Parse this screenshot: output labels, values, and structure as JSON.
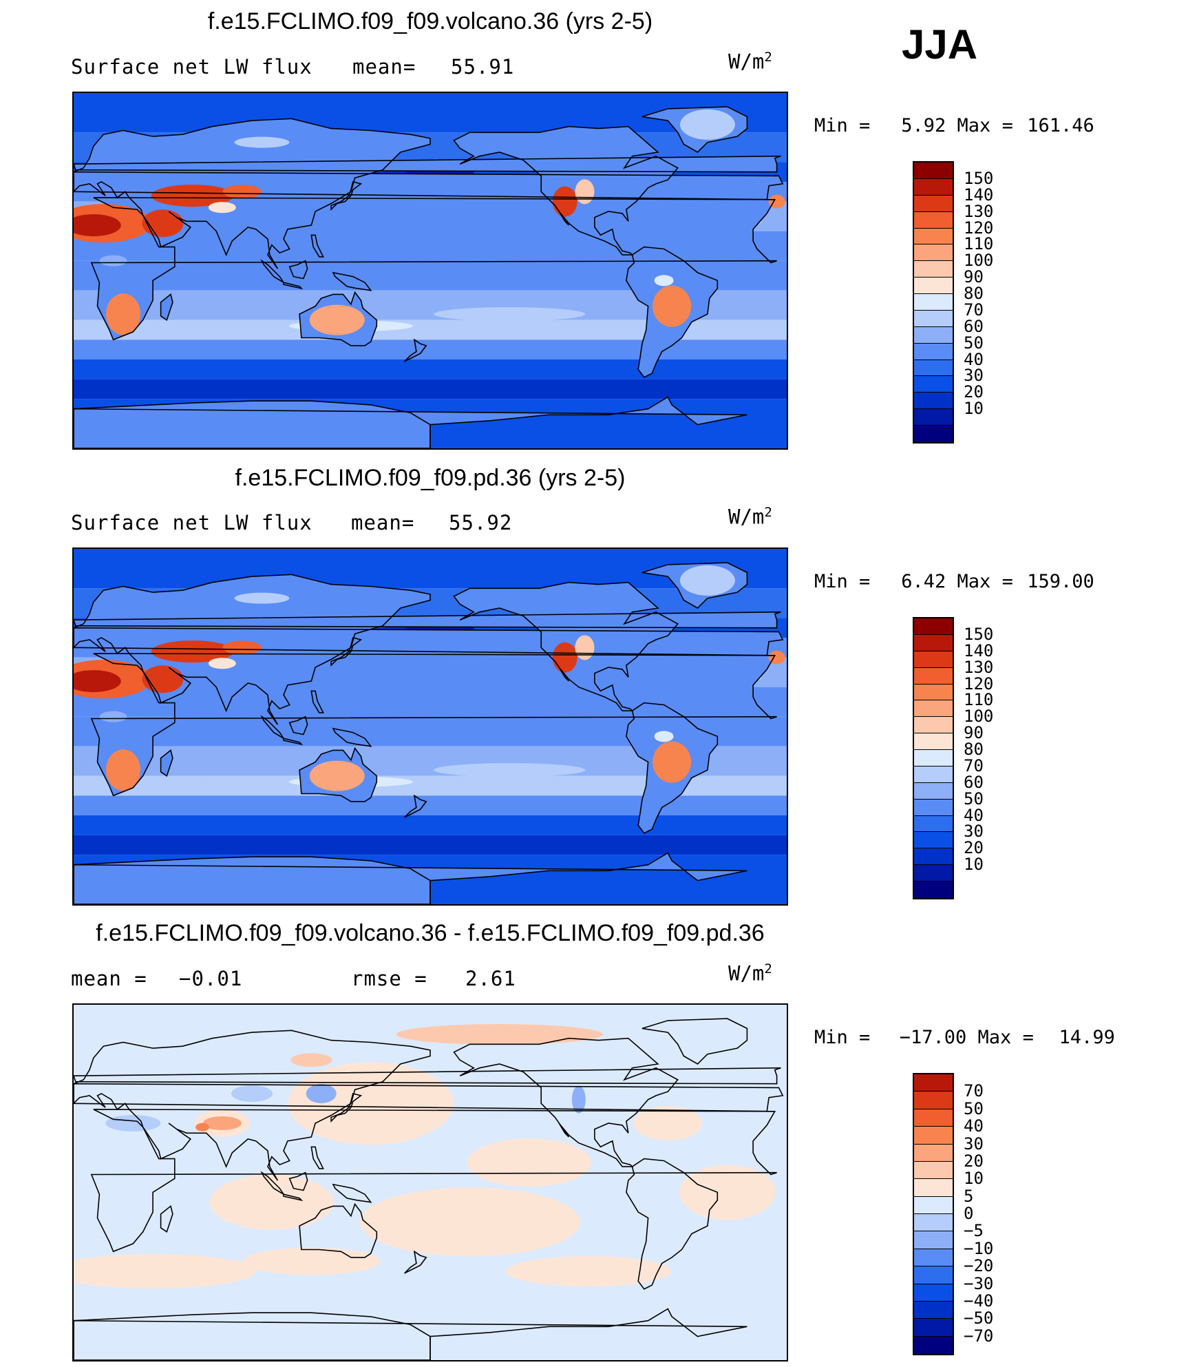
{
  "season": "JJA",
  "colors": {
    "full": [
      "#00007f",
      "#0019a6",
      "#0032c8",
      "#0a50e6",
      "#2d6eef",
      "#5a8cf5",
      "#8caff8",
      "#b4cdfa",
      "#dceafd",
      "#fde5d6",
      "#fcc9ae",
      "#fba57c",
      "#f7844f",
      "#f05f2d",
      "#dc3a16",
      "#b8180a",
      "#8c0000"
    ],
    "diff": [
      "#00007f",
      "#0019a6",
      "#0032c8",
      "#0a50e6",
      "#2d6eef",
      "#5a8cf5",
      "#8caff8",
      "#b4cdfa",
      "#dceafd",
      "#fde5d6",
      "#fcc9ae",
      "#fba57c",
      "#f7844f",
      "#f05f2d",
      "#dc3a16",
      "#b8180a"
    ]
  },
  "chart_data": [
    {
      "type": "heatmap",
      "title": "f.e15.FCLIMO.f09_f09.volcano.36 (yrs 2-5)",
      "variable": "Surface net LW flux",
      "mean_label": "mean=",
      "mean": "55.91",
      "units": "W/m",
      "units_sup": "2",
      "min_label": "Min =",
      "min": "5.92",
      "max_label": "Max =",
      "max": "161.46",
      "colorbar_levels": [
        "150",
        "140",
        "130",
        "120",
        "110",
        "100",
        "90",
        "80",
        "70",
        "60",
        "50",
        "40",
        "30",
        "20",
        "10"
      ],
      "field": "volcano"
    },
    {
      "type": "heatmap",
      "title": "f.e15.FCLIMO.f09_f09.pd.36 (yrs 2-5)",
      "variable": "Surface net LW flux",
      "mean_label": "mean=",
      "mean": "55.92",
      "units": "W/m",
      "units_sup": "2",
      "min_label": "Min =",
      "min": "6.42",
      "max_label": "Max =",
      "max": "159.00",
      "colorbar_levels": [
        "150",
        "140",
        "130",
        "120",
        "110",
        "100",
        "90",
        "80",
        "70",
        "60",
        "50",
        "40",
        "30",
        "20",
        "10"
      ],
      "field": "pd"
    },
    {
      "type": "heatmap",
      "title": "f.e15.FCLIMO.f09_f09.volcano.36 - f.e15.FCLIMO.f09_f09.pd.36",
      "mean_label": "mean =",
      "mean": "−0.01",
      "rmse_label": "rmse =",
      "rmse": "2.61",
      "units": "W/m",
      "units_sup": "2",
      "min_label": "Min =",
      "min": "−17.00",
      "max_label": "Max =",
      "max": "14.99",
      "colorbar_levels": [
        "70",
        "50",
        "40",
        "30",
        "20",
        "10",
        "5",
        "0",
        "−5",
        "−10",
        "−20",
        "−30",
        "−40",
        "−50",
        "−70"
      ],
      "field": "diff"
    }
  ]
}
